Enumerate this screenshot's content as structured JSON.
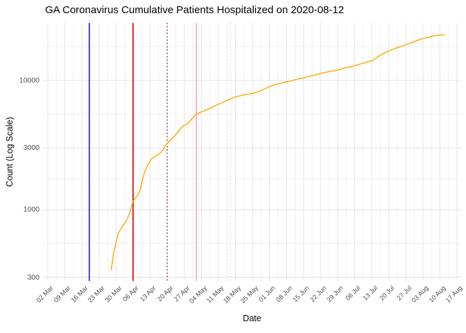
{
  "title": "GA Coronavirus Cumulative Patients Hospitalized on 2020-08-12",
  "chart_data": {
    "type": "line",
    "title": "GA Coronavirus Cumulative Patients Hospitalized on 2020-08-12",
    "xlabel": "Date",
    "ylabel": "Count (Log Scale)",
    "y_scale": "log10",
    "grid": true,
    "legend": "none",
    "background_color": "#FFFFFF",
    "grid_major_color": "#E3E3E3",
    "grid_minor_color": "#EFEFEF",
    "axis_text_color": "#4D4D4D",
    "y_major_breaks": [
      300,
      1000,
      3000,
      10000
    ],
    "y_major_labels": [
      "300",
      "1000",
      "3000",
      "10000"
    ],
    "y_minor_breaks": [
      548,
      1732,
      5477,
      18257
    ],
    "x_start_date": "2020-03-02",
    "x_tick_interval_days": 7,
    "x_tick_labels": [
      "02 Mar",
      "09 Mar",
      "16 Mar",
      "23 Mar",
      "30 Mar",
      "06 Apr",
      "13 Apr",
      "20 Apr",
      "27 Apr",
      "04 May",
      "11 May",
      "18 May",
      "25 May",
      "01 Jun",
      "08 Jun",
      "15 Jun",
      "22 Jun",
      "29 Jun",
      "06 Jul",
      "13 Jul",
      "20 Jul",
      "27 Jul",
      "03 Aug",
      "10 Aug",
      "17 Aug"
    ],
    "vlines": [
      {
        "x": "2020-03-19",
        "color": "#0A0AD6",
        "style": "solid",
        "width": 1.5
      },
      {
        "x": "2020-04-06",
        "color": "#E00000",
        "style": "solid",
        "width": 1.7
      },
      {
        "x": "2020-04-20",
        "color": "#BE2B2B",
        "style": "dotted",
        "width": 1.6
      },
      {
        "x": "2020-05-02",
        "color": "#FFB3BE",
        "style": "solid",
        "width": 2.0
      },
      {
        "x": "2020-05-16",
        "color": "#FFD4DC",
        "style": "dotted",
        "width": 1.6
      }
    ],
    "series": [
      {
        "name": "cumulative-patients-hospitalized",
        "color": "#FFA500",
        "x": [
          "2020-03-28",
          "2020-03-29",
          "2020-03-30",
          "2020-03-31",
          "2020-04-01",
          "2020-04-02",
          "2020-04-03",
          "2020-04-04",
          "2020-04-05",
          "2020-04-06",
          "2020-04-07",
          "2020-04-08",
          "2020-04-09",
          "2020-04-10",
          "2020-04-11",
          "2020-04-12",
          "2020-04-13",
          "2020-04-14",
          "2020-04-15",
          "2020-04-16",
          "2020-04-17",
          "2020-04-18",
          "2020-04-19",
          "2020-04-20",
          "2020-04-21",
          "2020-04-22",
          "2020-04-23",
          "2020-04-24",
          "2020-04-25",
          "2020-04-26",
          "2020-04-27",
          "2020-04-28",
          "2020-04-29",
          "2020-04-30",
          "2020-05-01",
          "2020-05-02",
          "2020-05-04",
          "2020-05-06",
          "2020-05-08",
          "2020-05-10",
          "2020-05-12",
          "2020-05-14",
          "2020-05-16",
          "2020-05-18",
          "2020-05-20",
          "2020-05-22",
          "2020-05-24",
          "2020-05-26",
          "2020-05-28",
          "2020-05-30",
          "2020-06-01",
          "2020-06-03",
          "2020-06-05",
          "2020-06-07",
          "2020-06-09",
          "2020-06-11",
          "2020-06-13",
          "2020-06-15",
          "2020-06-17",
          "2020-06-19",
          "2020-06-21",
          "2020-06-23",
          "2020-06-25",
          "2020-06-27",
          "2020-06-29",
          "2020-07-01",
          "2020-07-03",
          "2020-07-05",
          "2020-07-07",
          "2020-07-09",
          "2020-07-11",
          "2020-07-13",
          "2020-07-15",
          "2020-07-17",
          "2020-07-19",
          "2020-07-21",
          "2020-07-23",
          "2020-07-25",
          "2020-07-27",
          "2020-07-29",
          "2020-07-31",
          "2020-08-02",
          "2020-08-04",
          "2020-08-06",
          "2020-08-08",
          "2020-08-10",
          "2020-08-11",
          "2020-08-12"
        ],
        "y": [
          340,
          460,
          560,
          660,
          715,
          760,
          805,
          880,
          1000,
          1160,
          1230,
          1300,
          1450,
          1760,
          2020,
          2200,
          2380,
          2520,
          2580,
          2650,
          2730,
          2850,
          3100,
          3250,
          3400,
          3550,
          3700,
          3900,
          4100,
          4350,
          4500,
          4580,
          4750,
          5000,
          5250,
          5500,
          5700,
          5900,
          6150,
          6400,
          6650,
          6900,
          7200,
          7450,
          7600,
          7750,
          7870,
          8050,
          8250,
          8600,
          8950,
          9250,
          9450,
          9650,
          9850,
          10050,
          10300,
          10450,
          10700,
          10950,
          11150,
          11450,
          11650,
          11850,
          12050,
          12350,
          12650,
          12800,
          13200,
          13500,
          13850,
          14200,
          15000,
          15900,
          16600,
          17200,
          17800,
          18300,
          18900,
          19500,
          20200,
          20800,
          21300,
          21800,
          22200,
          22450,
          22500,
          22700
        ]
      }
    ]
  }
}
